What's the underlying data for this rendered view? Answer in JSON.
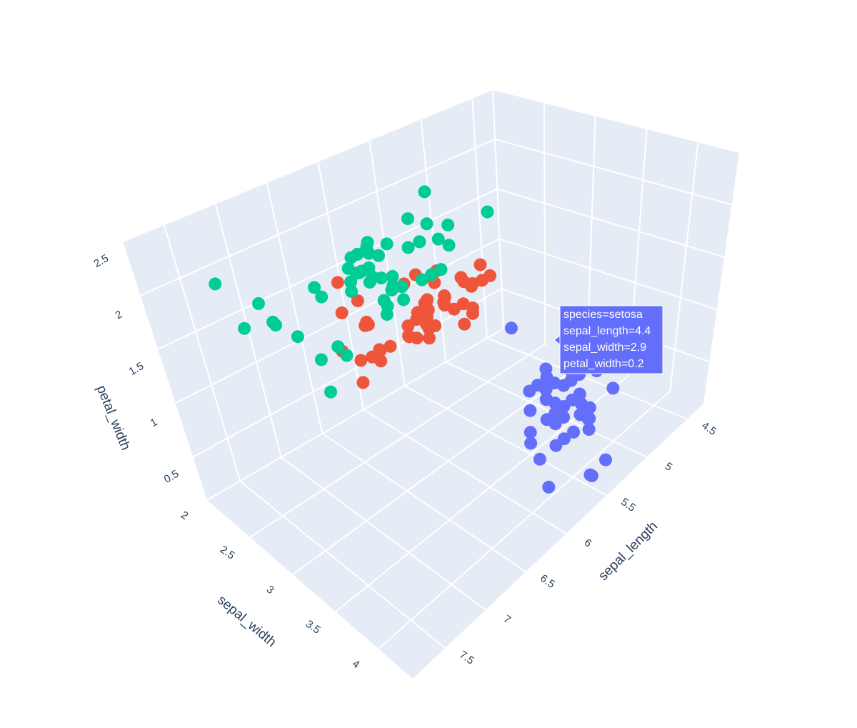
{
  "chart_data": {
    "type": "scatter3d",
    "xlabel": "sepal_length",
    "ylabel": "sepal_width",
    "zlabel": "petal_width",
    "xlim": [
      4.3,
      7.9
    ],
    "ylim": [
      2,
      4.4
    ],
    "zlim": [
      0.1,
      2.5
    ],
    "xticks": [
      4.5,
      5,
      5.5,
      6,
      6.5,
      7,
      7.5
    ],
    "yticks": [
      2,
      2.5,
      3,
      3.5,
      4
    ],
    "zticks": [
      0.5,
      1,
      1.5,
      2,
      2.5
    ],
    "grid": true,
    "series": [
      {
        "color": "#636efa",
        "x": [
          5.1,
          4.9,
          4.7,
          4.6,
          5.0,
          5.4,
          4.6,
          5.0,
          4.4,
          4.9,
          5.4,
          4.8,
          4.8,
          4.3,
          5.8,
          5.7,
          5.4,
          5.1,
          5.7,
          5.1,
          5.4,
          5.1,
          4.6,
          5.1,
          4.8,
          5.0,
          5.0,
          5.2,
          5.2,
          4.7,
          4.8,
          5.4,
          5.2,
          5.5,
          4.9,
          5.0,
          5.5,
          4.9,
          4.4,
          5.1,
          5.0,
          4.5,
          4.4,
          5.0,
          5.1,
          4.8,
          5.1,
          4.6,
          5.3,
          5.0
        ],
        "y": [
          3.5,
          3.0,
          3.2,
          3.1,
          3.6,
          3.9,
          3.4,
          3.4,
          2.9,
          3.1,
          3.7,
          3.4,
          3.0,
          3.0,
          4.0,
          4.4,
          3.9,
          3.5,
          3.8,
          3.8,
          3.4,
          3.7,
          3.6,
          3.3,
          3.4,
          3.0,
          3.4,
          3.5,
          3.4,
          3.2,
          3.1,
          3.4,
          4.1,
          4.2,
          3.1,
          3.2,
          3.5,
          3.6,
          3.0,
          3.4,
          3.5,
          2.3,
          3.2,
          3.5,
          3.8,
          3.0,
          3.8,
          3.2,
          3.7,
          3.3
        ],
        "z": [
          0.2,
          0.2,
          0.2,
          0.2,
          0.2,
          0.4,
          0.3,
          0.2,
          0.2,
          0.1,
          0.2,
          0.2,
          0.1,
          0.1,
          0.2,
          0.4,
          0.4,
          0.3,
          0.3,
          0.3,
          0.2,
          0.4,
          0.2,
          0.5,
          0.2,
          0.2,
          0.4,
          0.2,
          0.2,
          0.2,
          0.2,
          0.4,
          0.1,
          0.2,
          0.2,
          0.2,
          0.2,
          0.1,
          0.2,
          0.2,
          0.3,
          0.3,
          0.2,
          0.6,
          0.4,
          0.3,
          0.2,
          0.2,
          0.2,
          0.2
        ]
      },
      {
        "color": "#ef553b",
        "x": [
          7.0,
          6.4,
          6.9,
          5.5,
          6.5,
          5.7,
          6.3,
          4.9,
          6.6,
          5.2,
          5.0,
          5.9,
          6.0,
          6.1,
          5.6,
          6.7,
          5.6,
          5.8,
          6.2,
          5.6,
          5.9,
          6.1,
          6.3,
          6.1,
          6.4,
          6.6,
          6.8,
          6.7,
          6.0,
          5.7,
          5.5,
          5.5,
          5.8,
          6.0,
          5.4,
          6.0,
          6.7,
          6.3,
          5.6,
          5.5,
          5.5,
          6.1,
          5.8,
          5.0,
          5.6,
          5.7,
          5.7,
          6.2,
          5.1,
          5.7
        ],
        "y": [
          3.2,
          3.2,
          3.1,
          2.3,
          2.8,
          2.8,
          3.3,
          2.4,
          2.9,
          2.7,
          2.0,
          3.0,
          2.2,
          2.9,
          2.9,
          3.1,
          3.0,
          2.7,
          2.2,
          2.5,
          3.2,
          2.8,
          2.5,
          2.8,
          2.9,
          3.0,
          2.8,
          3.0,
          2.9,
          2.6,
          2.4,
          2.4,
          2.7,
          2.7,
          3.0,
          3.4,
          3.1,
          2.3,
          3.0,
          2.5,
          2.6,
          3.0,
          2.6,
          2.3,
          2.7,
          3.0,
          2.9,
          2.9,
          2.5,
          2.8
        ],
        "z": [
          1.4,
          1.5,
          1.5,
          1.3,
          1.5,
          1.3,
          1.6,
          1.0,
          1.3,
          1.4,
          1.0,
          1.5,
          1.0,
          1.4,
          1.3,
          1.4,
          1.5,
          1.0,
          1.5,
          1.1,
          1.8,
          1.3,
          1.5,
          1.2,
          1.3,
          1.4,
          1.4,
          1.7,
          1.5,
          1.0,
          1.1,
          1.0,
          1.2,
          1.6,
          1.5,
          1.6,
          1.5,
          1.3,
          1.3,
          1.3,
          1.2,
          1.4,
          1.2,
          1.0,
          1.3,
          1.2,
          1.3,
          1.3,
          1.1,
          1.3
        ]
      },
      {
        "color": "#00cc96",
        "x": [
          6.3,
          5.8,
          7.1,
          6.3,
          6.5,
          7.6,
          4.9,
          7.3,
          6.7,
          7.2,
          6.5,
          6.4,
          6.8,
          5.7,
          5.8,
          6.4,
          6.5,
          7.7,
          7.7,
          6.0,
          6.9,
          5.6,
          7.7,
          6.3,
          6.7,
          7.2,
          6.2,
          6.1,
          6.4,
          7.2,
          7.4,
          7.9,
          6.4,
          6.3,
          6.1,
          7.7,
          6.3,
          6.4,
          6.0,
          6.9,
          6.7,
          6.9,
          5.8,
          6.8,
          6.7,
          6.7,
          6.3,
          6.5,
          6.2,
          5.9
        ],
        "y": [
          3.3,
          2.7,
          3.0,
          2.9,
          3.0,
          3.0,
          2.5,
          2.9,
          2.5,
          3.6,
          3.2,
          2.7,
          3.0,
          2.5,
          2.8,
          3.2,
          3.0,
          3.8,
          2.6,
          2.2,
          3.2,
          2.8,
          2.8,
          2.7,
          3.3,
          3.2,
          2.8,
          3.0,
          2.8,
          3.0,
          2.8,
          3.8,
          2.8,
          2.8,
          2.6,
          3.0,
          3.4,
          3.1,
          3.0,
          3.1,
          3.1,
          3.1,
          2.7,
          3.2,
          3.3,
          3.0,
          2.5,
          3.0,
          3.4,
          3.0
        ],
        "z": [
          2.5,
          1.9,
          2.1,
          1.8,
          2.2,
          2.1,
          1.7,
          1.8,
          1.8,
          2.5,
          2.0,
          1.9,
          2.1,
          2.0,
          2.4,
          2.3,
          1.8,
          2.2,
          2.3,
          1.5,
          2.3,
          2.0,
          2.0,
          1.8,
          2.1,
          1.8,
          1.8,
          1.8,
          2.1,
          1.6,
          1.9,
          2.0,
          2.2,
          1.5,
          1.4,
          2.3,
          2.4,
          1.8,
          1.8,
          2.1,
          2.4,
          2.3,
          1.9,
          2.3,
          2.5,
          2.3,
          1.9,
          2.0,
          2.3,
          1.8
        ]
      }
    ],
    "tooltip": [
      "species=setosa",
      "sepal_length=4.4",
      "sepal_width=2.9",
      "petal_width=0.2"
    ]
  }
}
